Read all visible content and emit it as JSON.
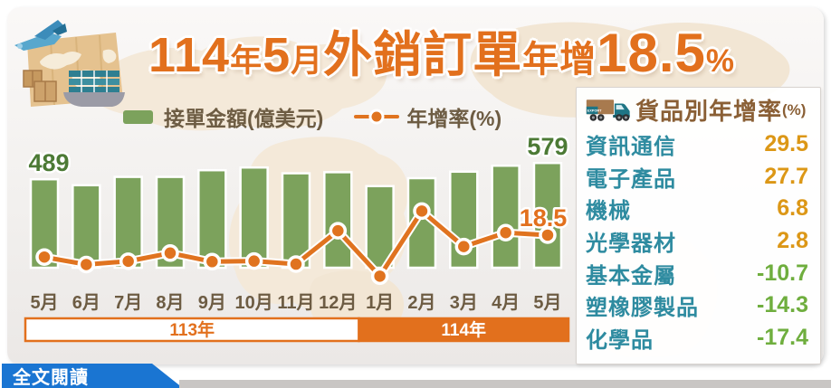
{
  "title": {
    "segments": [
      {
        "text": "114",
        "size": "lg"
      },
      {
        "text": "年",
        "size": "sm"
      },
      {
        "text": "5",
        "size": "lg"
      },
      {
        "text": "月",
        "size": "sm"
      },
      {
        "text": "外銷訂單",
        "size": "lg"
      },
      {
        "text": "年增",
        "size": "md"
      },
      {
        "text": "18.5",
        "size": "xl"
      },
      {
        "text": "%",
        "size": "sm"
      }
    ]
  },
  "chart_data": {
    "type": "bar+line",
    "title": "114年5月外銷訂單年增18.5%",
    "categories": [
      "5月",
      "6月",
      "7月",
      "8月",
      "9月",
      "10月",
      "11月",
      "12月",
      "1月",
      "2月",
      "3月",
      "4月",
      "5月"
    ],
    "year_groups": [
      {
        "label": "113年",
        "start_index": 0,
        "end_index": 7
      },
      {
        "label": "114年",
        "start_index": 8,
        "end_index": 12
      }
    ],
    "series": [
      {
        "name": "接單金額(億美元)",
        "type": "bar",
        "values": [
          489,
          456,
          502,
          502,
          539,
          554,
          522,
          528,
          451,
          495,
          531,
          564,
          579
        ]
      },
      {
        "name": "年增率(%)",
        "type": "line",
        "values": [
          7.0,
          3.1,
          4.8,
          9.1,
          4.6,
          4.9,
          3.3,
          20.8,
          -3.0,
          31.1,
          12.5,
          19.8,
          18.5
        ]
      }
    ],
    "data_labels": {
      "first_bar": "489",
      "last_bar": "579",
      "last_point": "18.5"
    },
    "bar_axis": {
      "min": 0,
      "max": 600
    },
    "line_axis": {
      "min": -5,
      "max": 35
    },
    "grid": false,
    "legend_position": "top"
  },
  "panel": {
    "truck_label": "EXPORT",
    "title": "貨品別年增率",
    "unit": "(%)",
    "rows": [
      {
        "label": "資訊通信",
        "value": "29.5"
      },
      {
        "label": "電子產品",
        "value": "27.7"
      },
      {
        "label": "機械",
        "value": "6.8"
      },
      {
        "label": "光學器材",
        "value": "2.8"
      },
      {
        "label": "基本金屬",
        "value": "-10.7"
      },
      {
        "label": "塑橡膠製品",
        "value": "-14.3"
      },
      {
        "label": "化學品",
        "value": "-17.4"
      }
    ]
  },
  "footer": {
    "read_more_label": "全文閱讀"
  },
  "colors": {
    "accent_orange": "#e2701d",
    "bar_green": "#7ca25c",
    "line_orange": "#e0731f",
    "value_green": "#4c7a35",
    "label_brown": "#6d5c43",
    "category_teal": "#2e8ba0",
    "positive_gold": "#dc9716",
    "negative_green": "#6fae3e",
    "button_blue": "#1a75d2"
  }
}
